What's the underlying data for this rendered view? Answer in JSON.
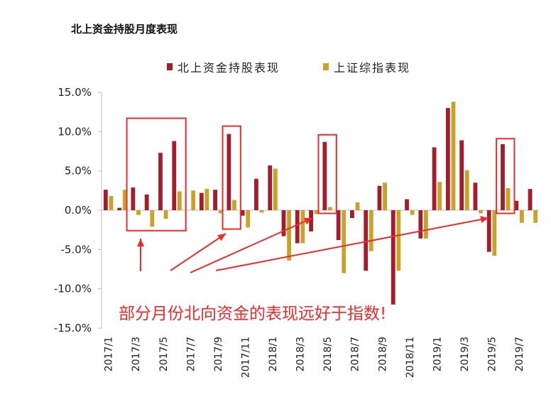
{
  "chart_data": {
    "type": "bar",
    "title": "北上资金持股月度表现",
    "xlabel": "",
    "ylabel": "",
    "ylim": [
      -15,
      15
    ],
    "yticks": [
      "15.0%",
      "10.0%",
      "5.0%",
      "0.0%",
      "-5.0%",
      "-10.0%",
      "-15.0%"
    ],
    "ytick_values": [
      15,
      10,
      5,
      0,
      -5,
      -10,
      -15
    ],
    "categories": [
      "2017/1",
      "2017/2",
      "2017/3",
      "2017/4",
      "2017/5",
      "2017/6",
      "2017/7",
      "2017/8",
      "2017/9",
      "2017/10",
      "2017/11",
      "2017/12",
      "2018/1",
      "2018/2",
      "2018/3",
      "2018/4",
      "2018/5",
      "2018/6",
      "2018/7",
      "2018/8",
      "2018/9",
      "2018/10",
      "2018/11",
      "2018/12",
      "2019/1",
      "2019/2",
      "2019/3",
      "2019/4",
      "2019/5",
      "2019/6",
      "2019/7",
      "2019/8"
    ],
    "xtick_labels": [
      "2017/1",
      "",
      "2017/3",
      "",
      "2017/5",
      "",
      "2017/7",
      "",
      "2017/9",
      "",
      "2017/11",
      "",
      "2018/1",
      "",
      "2018/3",
      "",
      "2018/5",
      "",
      "2018/7",
      "",
      "2018/9",
      "",
      "2018/11",
      "",
      "2019/1",
      "",
      "2019/3",
      "",
      "2019/5",
      "",
      "2019/7",
      ""
    ],
    "series": [
      {
        "name": "北上资金持股表现",
        "color": "#a51d2d",
        "values": [
          2.6,
          0.3,
          2.9,
          2.0,
          7.3,
          8.8,
          0.0,
          2.2,
          2.6,
          9.7,
          -0.7,
          4.0,
          5.7,
          -3.3,
          -4.2,
          -2.7,
          8.7,
          -3.8,
          -1.0,
          -7.7,
          3.1,
          -12.0,
          1.4,
          -3.6,
          8.0,
          13.0,
          8.9,
          3.5,
          -5.3,
          8.4,
          1.2,
          2.7
        ]
      },
      {
        "name": "上证综指表现",
        "color": "#c9a227",
        "values": [
          1.8,
          2.6,
          -0.6,
          -2.1,
          -1.1,
          2.4,
          2.5,
          2.7,
          -0.4,
          1.3,
          -2.2,
          -0.3,
          5.3,
          -6.4,
          -4.2,
          -0.5,
          0.4,
          -8.0,
          1.0,
          -5.2,
          3.5,
          -7.7,
          -0.6,
          -3.6,
          3.6,
          13.8,
          5.1,
          -0.4,
          -5.8,
          2.8,
          -1.6,
          -1.6
        ]
      }
    ],
    "legend_position": "top",
    "annotation": "部分月份北向资金的表现远好于指数!",
    "highlight_boxes": [
      [
        2,
        5
      ],
      [
        9,
        9
      ],
      [
        16,
        16
      ],
      [
        29,
        29
      ]
    ]
  }
}
